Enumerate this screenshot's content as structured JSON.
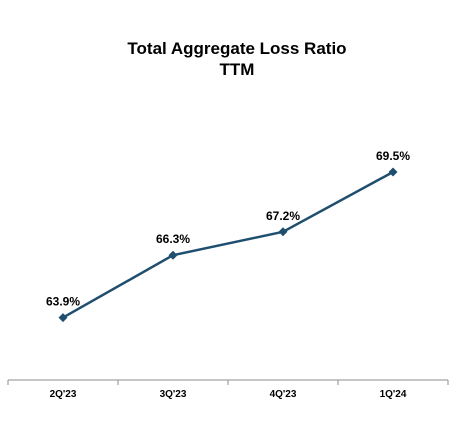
{
  "chart_data": {
    "type": "line",
    "title": "Total Aggregate Loss Ratio",
    "subtitle": "TTM",
    "categories": [
      "2Q'23",
      "3Q'23",
      "4Q'23",
      "1Q'24"
    ],
    "series": [
      {
        "values": [
          63.9,
          66.3,
          67.2,
          69.5
        ],
        "data_labels": [
          "63.9%",
          "66.3%",
          "67.2%",
          "69.5%"
        ]
      }
    ],
    "xlabel": "",
    "ylabel": "",
    "ylim": [
      61.5,
      71.5
    ],
    "grid": false,
    "legend": "none",
    "colors": {
      "line": "#1f4e6e",
      "marker": "#1f4e6e",
      "axis": "#8c8c8c"
    }
  }
}
